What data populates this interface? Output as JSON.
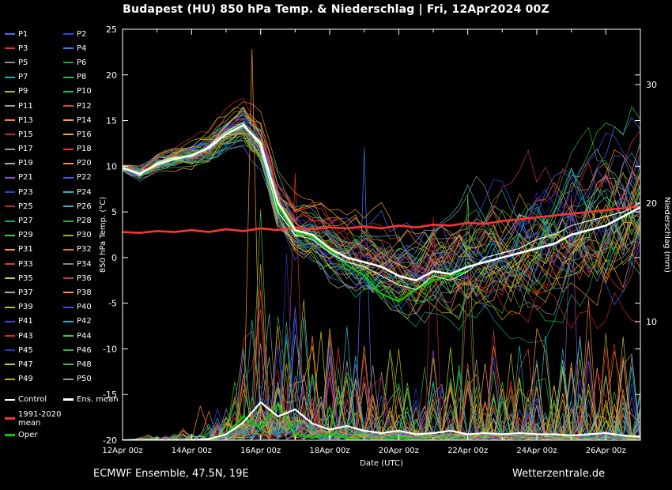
{
  "title": "Budapest  (HU)  850 hPa Temp. & Niederschlag | Fri, 12Apr2024 00Z",
  "footer": {
    "left": "ECMWF Ensemble, 47.5N, 19E",
    "right": "Wetterzentrale.de"
  },
  "legend": {
    "members": [
      {
        "label": "P1",
        "color": "#5566ff"
      },
      {
        "label": "P2",
        "color": "#3344dd"
      },
      {
        "label": "P3",
        "color": "#dd3333"
      },
      {
        "label": "P4",
        "color": "#4477ff"
      },
      {
        "label": "P5",
        "color": "#8f8f8f"
      },
      {
        "label": "P6",
        "color": "#22aa44"
      },
      {
        "label": "P7",
        "color": "#00bbbb"
      },
      {
        "label": "P8",
        "color": "#33bb33"
      },
      {
        "label": "P9",
        "color": "#bbbb00"
      },
      {
        "label": "P10",
        "color": "#00cc44"
      },
      {
        "label": "P11",
        "color": "#9999aa"
      },
      {
        "label": "P12",
        "color": "#dd4444"
      },
      {
        "label": "P13",
        "color": "#ee8822"
      },
      {
        "label": "P14",
        "color": "#ff9933"
      },
      {
        "label": "P15",
        "color": "#dd2222"
      },
      {
        "label": "P16",
        "color": "#ffaa22"
      },
      {
        "label": "P17",
        "color": "#999999"
      },
      {
        "label": "P18",
        "color": "#ee3333"
      },
      {
        "label": "P19",
        "color": "#aaaaaa"
      },
      {
        "label": "P20",
        "color": "#ff8833"
      },
      {
        "label": "P21",
        "color": "#9944cc"
      },
      {
        "label": "P22",
        "color": "#4455ee"
      },
      {
        "label": "P23",
        "color": "#2244dd"
      },
      {
        "label": "P24",
        "color": "#00cccc"
      },
      {
        "label": "P25",
        "color": "#cc2222"
      },
      {
        "label": "P26",
        "color": "#22bbcc"
      },
      {
        "label": "P27",
        "color": "#00aa88"
      },
      {
        "label": "P28",
        "color": "#33aa33"
      },
      {
        "label": "P29",
        "color": "#44cc44"
      },
      {
        "label": "P30",
        "color": "#aaaa22"
      },
      {
        "label": "P31",
        "color": "#ff9922"
      },
      {
        "label": "P32",
        "color": "#ee7722"
      },
      {
        "label": "P33",
        "color": "#dd3333"
      },
      {
        "label": "P34",
        "color": "#8888aa"
      },
      {
        "label": "P35",
        "color": "#cccc22"
      },
      {
        "label": "P36",
        "color": "#cc3344"
      },
      {
        "label": "P37",
        "color": "#aaaaaa"
      },
      {
        "label": "P38",
        "color": "#ff9944"
      },
      {
        "label": "P39",
        "color": "#bbbb33"
      },
      {
        "label": "P40",
        "color": "#3355ff"
      },
      {
        "label": "P41",
        "color": "#4444ee"
      },
      {
        "label": "P42",
        "color": "#00bbcc"
      },
      {
        "label": "P43",
        "color": "#dd2233"
      },
      {
        "label": "P44",
        "color": "#33cc44"
      },
      {
        "label": "P45",
        "color": "#2233cc"
      },
      {
        "label": "P46",
        "color": "#22bb33"
      },
      {
        "label": "P47",
        "color": "#cccc33"
      },
      {
        "label": "P48",
        "color": "#44bb44"
      },
      {
        "label": "P49",
        "color": "#bbaa22"
      },
      {
        "label": "P50",
        "color": "#999999"
      }
    ],
    "control": {
      "label": "Control",
      "color": "#ffffff"
    },
    "ens_mean": {
      "label": "Ens. mean",
      "color": "#ffffff"
    },
    "climate": {
      "label": "1991-2020 mean",
      "color": "#ff3333"
    },
    "oper": {
      "label": "Oper",
      "color": "#00cc00"
    }
  },
  "chart_data": {
    "type": "line",
    "title": "Budapest  (HU)  850 hPa Temp. & Niederschlag | Fri, 12Apr2024 00Z",
    "xlabel": "Date (UTC)",
    "ylabel_left": "850 hPa Temp. (°C)",
    "ylabel_right": "Niederschlag (mm)",
    "ylim_left": [
      -20,
      25
    ],
    "ylim_right": [
      0,
      35
    ],
    "y_ticks_left": [
      -20,
      -15,
      -10,
      -5,
      0,
      5,
      10,
      15,
      20,
      25
    ],
    "y_ticks_right": [
      10,
      20,
      30
    ],
    "hours_total": 360,
    "hours_step": 12,
    "x_tick_hours": [
      0,
      48,
      96,
      144,
      192,
      240,
      288,
      336
    ],
    "x_ticks": [
      "12Apr 00z",
      "14Apr 00z",
      "16Apr 00z",
      "18Apr 00z",
      "20Apr 00z",
      "22Apr 00z",
      "24Apr 00z",
      "26Apr 00z"
    ],
    "grid": false,
    "legend_position": "left",
    "series": {
      "ens_mean_temp": [
        9.8,
        9.2,
        10.2,
        10.8,
        11.2,
        12.0,
        13.5,
        14.5,
        12.5,
        6.0,
        3.0,
        2.5,
        1.0,
        0.0,
        -0.5,
        -1.0,
        -2.0,
        -2.5,
        -1.5,
        -1.8,
        -1.0,
        -0.5,
        0.0,
        0.5,
        1.0,
        1.5,
        2.5,
        3.0,
        3.5,
        4.5,
        5.5
      ],
      "control_temp": [
        9.8,
        9.0,
        10.4,
        11.0,
        11.0,
        12.2,
        13.8,
        14.8,
        12.0,
        5.0,
        2.5,
        2.0,
        0.5,
        -0.5,
        -1.0,
        -2.0,
        -3.0,
        -3.5,
        -2.0,
        -2.5,
        -1.5,
        0.0,
        0.5,
        1.0,
        2.0,
        2.5,
        3.5,
        4.0,
        4.5,
        5.0,
        6.0
      ],
      "oper_temp": [
        9.8,
        9.1,
        10.3,
        10.9,
        11.3,
        12.1,
        13.6,
        14.6,
        12.2,
        5.5,
        2.8,
        2.2,
        0.8,
        -0.8,
        -2.0,
        -4.0,
        -4.8,
        -3.5,
        -2.5,
        -2.0,
        -1.5
      ],
      "climate_temp": [
        2.8,
        2.7,
        2.9,
        2.8,
        3.0,
        2.8,
        3.1,
        2.9,
        3.2,
        3.0,
        3.3,
        3.1,
        3.3,
        3.2,
        3.4,
        3.2,
        3.5,
        3.3,
        3.6,
        3.5,
        3.8,
        3.7,
        4.0,
        4.2,
        4.4,
        4.6,
        4.8,
        5.0,
        5.2,
        5.4,
        5.6
      ],
      "ens_mean_precip": [
        0,
        0,
        0,
        0,
        0,
        0.1,
        0.5,
        1.5,
        3.2,
        2.0,
        2.6,
        1.4,
        0.9,
        1.2,
        0.8,
        0.6,
        0.8,
        0.5,
        0.6,
        0.8,
        0.5,
        0.6,
        0.5,
        0.6,
        0.5,
        0.5,
        0.4,
        0.5,
        0.6,
        0.4,
        0.3
      ],
      "oper_precip": [
        0,
        0,
        0,
        0,
        0,
        0,
        0.5,
        2.0,
        1.0,
        3.0,
        0.5,
        0.2,
        0.5,
        0.2,
        0,
        0,
        0.3,
        0,
        0,
        0,
        0
      ]
    },
    "ensemble": {
      "member_count": 50,
      "note_spread_temp_end_deg": 8,
      "precip_max_mm": 33
    }
  }
}
